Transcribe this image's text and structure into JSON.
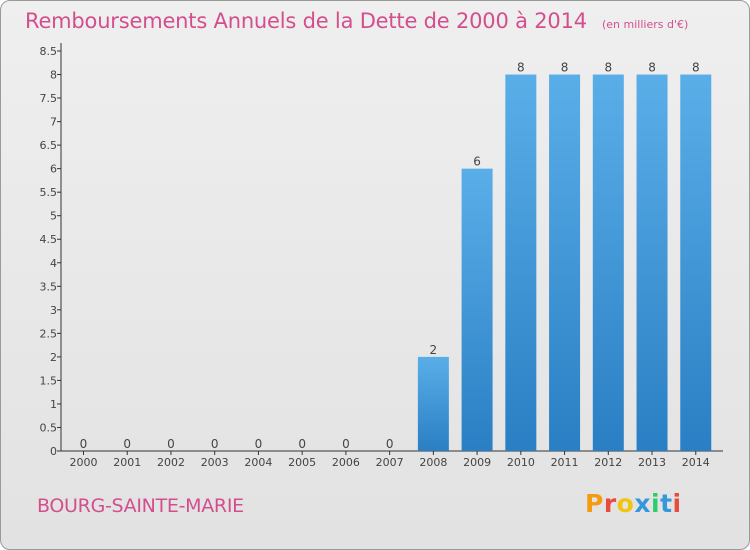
{
  "header": {
    "title": "Remboursements Annuels de la Dette de 2000 à 2014",
    "unit": "(en milliers d'€)"
  },
  "footer": {
    "commune": "BOURG-SAINTE-MARIE",
    "logo_text": "Proxiti",
    "logo_colors": [
      "#f39c12",
      "#e74c3c",
      "#f1c40f",
      "#3498db",
      "#2ecc71",
      "#3498db",
      "#e74c3c"
    ]
  },
  "chart_data": {
    "type": "bar",
    "title": "Remboursements Annuels de la Dette de 2000 à 2014",
    "subtitle": "(en milliers d'€)",
    "xlabel": "",
    "ylabel": "",
    "categories": [
      "2000",
      "2001",
      "2002",
      "2003",
      "2004",
      "2005",
      "2006",
      "2007",
      "2008",
      "2009",
      "2010",
      "2011",
      "2012",
      "2013",
      "2014"
    ],
    "values": [
      0,
      0,
      0,
      0,
      0,
      0,
      0,
      0,
      2,
      6,
      8,
      8,
      8,
      8,
      8
    ],
    "data_labels": [
      "0",
      "0",
      "0",
      "0",
      "0",
      "0",
      "0",
      "0",
      "2",
      "6",
      "8",
      "8",
      "8",
      "8",
      "8"
    ],
    "ylim": [
      0,
      8.5
    ],
    "yticks": [
      {
        "value": 0,
        "label": "0"
      },
      {
        "value": 0.5,
        "label": "0.5"
      },
      {
        "value": 1,
        "label": "1"
      },
      {
        "value": 1.5,
        "label": "1.5"
      },
      {
        "value": 2,
        "label": "2"
      },
      {
        "value": 2.5,
        "label": "2.5"
      },
      {
        "value": 3,
        "label": "3"
      },
      {
        "value": 3.5,
        "label": "3.5"
      },
      {
        "value": 4,
        "label": "4"
      },
      {
        "value": 4.5,
        "label": "4.5"
      },
      {
        "value": 5,
        "label": "5"
      },
      {
        "value": 5.5,
        "label": "5.5"
      },
      {
        "value": 6,
        "label": "6"
      },
      {
        "value": 6.5,
        "label": "6.5"
      },
      {
        "value": 7,
        "label": "7"
      },
      {
        "value": 7.5,
        "label": "7.5"
      },
      {
        "value": 8,
        "label": "8"
      },
      {
        "value": 8.5,
        "label": "8.5"
      }
    ],
    "grid": false,
    "bar_color_light": "#5aaee8",
    "bar_color_dark": "#2a7fc4",
    "text_color": "#444444",
    "axis_color": "#333333"
  }
}
